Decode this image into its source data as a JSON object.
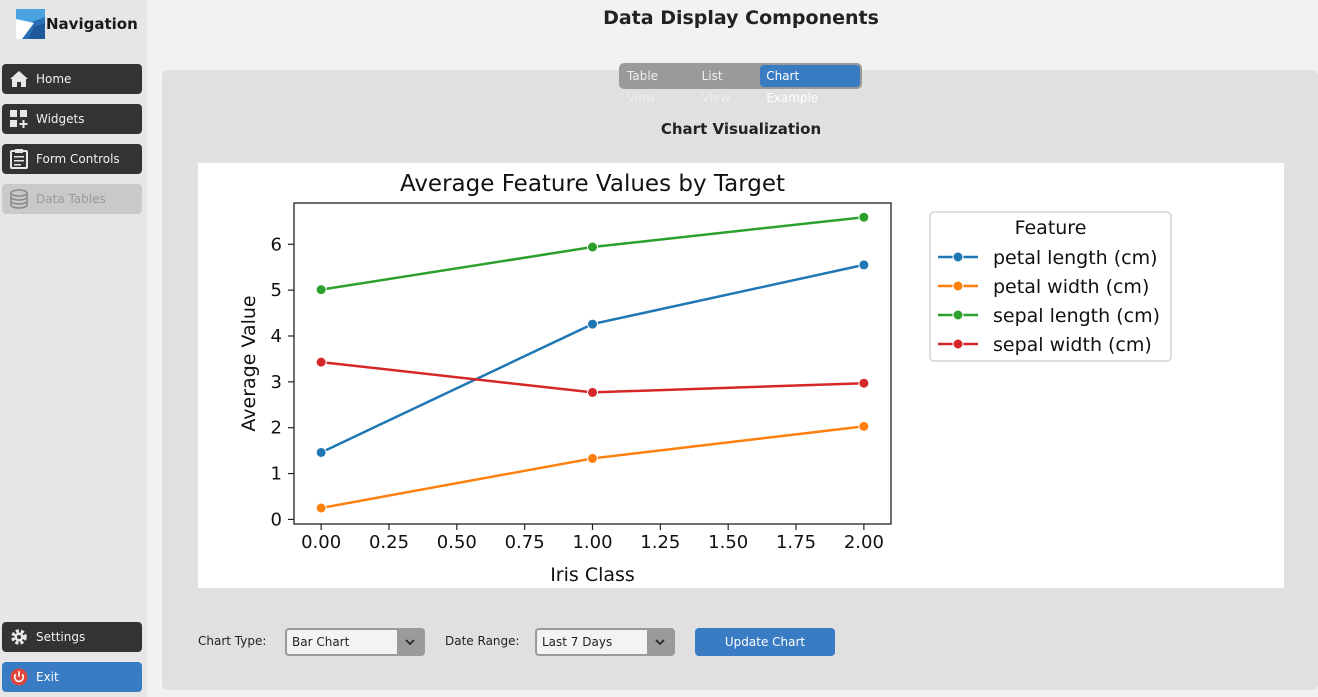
{
  "sidebar": {
    "title": "Navigation",
    "items": [
      {
        "label": "Home",
        "icon": "home-icon"
      },
      {
        "label": "Widgets",
        "icon": "widgets-icon"
      },
      {
        "label": "Form Controls",
        "icon": "clipboard-icon"
      },
      {
        "label": "Data Tables",
        "icon": "database-icon"
      }
    ],
    "bottom_items": [
      {
        "label": "Settings",
        "icon": "gear-icon"
      },
      {
        "label": "Exit",
        "icon": "power-icon"
      }
    ]
  },
  "header": {
    "title": "Data Display Components"
  },
  "tabs": [
    {
      "label": "Table View",
      "active": false
    },
    {
      "label": "List View",
      "active": false
    },
    {
      "label": "Chart Example",
      "active": true
    }
  ],
  "section": {
    "title": "Chart Visualization"
  },
  "chart_data": {
    "type": "line",
    "title": "Average Feature Values by Target",
    "xlabel": "Iris Class",
    "ylabel": "Average Value",
    "x": [
      0,
      1,
      2
    ],
    "xlim": [
      -0.1,
      2.1
    ],
    "ylim": [
      -0.1,
      6.9
    ],
    "xticks": [
      "0.00",
      "0.25",
      "0.50",
      "0.75",
      "1.00",
      "1.25",
      "1.50",
      "1.75",
      "2.00"
    ],
    "yticks": [
      "0",
      "1",
      "2",
      "3",
      "4",
      "5",
      "6"
    ],
    "legend_title": "Feature",
    "legend_position": "outside-right",
    "grid": false,
    "series": [
      {
        "name": "petal length (cm)",
        "color": "#1f77b4",
        "values": [
          1.46,
          4.26,
          5.55
        ]
      },
      {
        "name": "petal width (cm)",
        "color": "#ff7f0e",
        "values": [
          0.25,
          1.33,
          2.03
        ]
      },
      {
        "name": "sepal length (cm)",
        "color": "#2ca02c",
        "values": [
          5.01,
          5.94,
          6.59
        ]
      },
      {
        "name": "sepal width (cm)",
        "color": "#d62728",
        "values": [
          3.43,
          2.77,
          2.97
        ]
      }
    ]
  },
  "controls": {
    "chart_type_label": "Chart Type:",
    "chart_type_value": "Bar Chart",
    "date_range_label": "Date Range:",
    "date_range_value": "Last 7 Days",
    "update_label": "Update Chart"
  },
  "colors": {
    "accent": "#3a7cc4",
    "nav_button": "#333333",
    "disabled": "#c9c9c9"
  }
}
